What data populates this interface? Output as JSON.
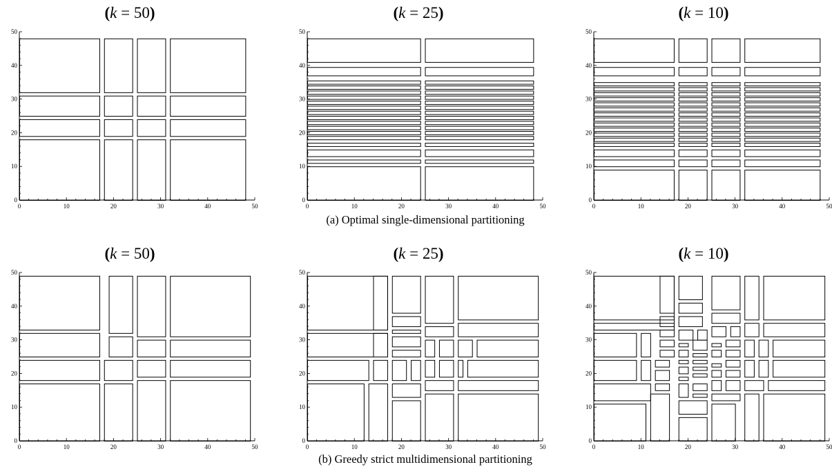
{
  "figure": {
    "rows": [
      {
        "caption": "(a) Optimal single-dimensional partitioning",
        "panels": [
          {
            "title_paren_left": "(",
            "title_var": "k",
            "title_eq": " = 50",
            "title_paren_right": ")",
            "k": 50
          },
          {
            "title_paren_left": "(",
            "title_var": "k",
            "title_eq": " = 25",
            "title_paren_right": ")",
            "k": 25
          },
          {
            "title_paren_left": "(",
            "title_var": "k",
            "title_eq": " = 10",
            "title_paren_right": ")",
            "k": 10
          }
        ]
      },
      {
        "caption": "(b) Greedy strict multidimensional partitioning",
        "panels": [
          {
            "title_paren_left": "(",
            "title_var": "k",
            "title_eq": " = 50",
            "title_paren_right": ")",
            "k": 50
          },
          {
            "title_paren_left": "(",
            "title_var": "k",
            "title_eq": " = 25",
            "title_paren_right": ")",
            "k": 25
          },
          {
            "title_paren_left": "(",
            "title_var": "k",
            "title_eq": " = 10",
            "title_paren_right": ")",
            "k": 10
          }
        ]
      }
    ]
  },
  "chart_data": [
    {
      "type": "partition",
      "title": "(k = 50)",
      "xlim": [
        0,
        50
      ],
      "ylim": [
        0,
        50
      ],
      "xticks": [
        "0",
        "10",
        "20",
        "30",
        "40",
        "50"
      ],
      "yticks": [
        "0",
        "10",
        "20",
        "30",
        "40",
        "50"
      ],
      "rects": [
        [
          0,
          0,
          17,
          18
        ],
        [
          18,
          0,
          24,
          18
        ],
        [
          25,
          0,
          31,
          18
        ],
        [
          32,
          0,
          48,
          18
        ],
        [
          0,
          19,
          17,
          24
        ],
        [
          18,
          19,
          24,
          24
        ],
        [
          25,
          19,
          31,
          24
        ],
        [
          32,
          19,
          48,
          24
        ],
        [
          0,
          25,
          17,
          31
        ],
        [
          18,
          25,
          24,
          31
        ],
        [
          25,
          25,
          31,
          31
        ],
        [
          32,
          25,
          48,
          31
        ],
        [
          0,
          32,
          17,
          48
        ],
        [
          18,
          32,
          24,
          48
        ],
        [
          25,
          32,
          31,
          48
        ],
        [
          32,
          32,
          48,
          48
        ]
      ]
    },
    {
      "type": "partition",
      "title": "(k = 25)",
      "xlim": [
        0,
        50
      ],
      "ylim": [
        0,
        50
      ],
      "xticks": [
        "0",
        "10",
        "20",
        "30",
        "40",
        "50"
      ],
      "yticks": [
        "0",
        "10",
        "20",
        "30",
        "40",
        "50"
      ],
      "xcuts": [
        [
          0,
          24
        ],
        [
          25,
          48
        ]
      ],
      "ycuts": [
        [
          0,
          10
        ],
        [
          11,
          12
        ],
        [
          13,
          15
        ],
        [
          16,
          17
        ],
        [
          18,
          19
        ],
        [
          19.5,
          20.5
        ],
        [
          21,
          22
        ],
        [
          22.5,
          23.5
        ],
        [
          24,
          25
        ],
        [
          25.5,
          26.5
        ],
        [
          27,
          28
        ],
        [
          28.5,
          29.5
        ],
        [
          30,
          31
        ],
        [
          31.5,
          32.5
        ],
        [
          33,
          34
        ],
        [
          34.5,
          35.5
        ],
        [
          37,
          39.5
        ],
        [
          41,
          48
        ]
      ]
    },
    {
      "type": "partition",
      "title": "(k = 10)",
      "xlim": [
        0,
        50
      ],
      "ylim": [
        0,
        50
      ],
      "xticks": [
        "0",
        "10",
        "20",
        "30",
        "40",
        "50"
      ],
      "yticks": [
        "0",
        "10",
        "20",
        "30",
        "40",
        "50"
      ],
      "xcuts": [
        [
          0,
          17
        ],
        [
          18,
          24
        ],
        [
          25,
          31
        ],
        [
          32,
          48
        ]
      ],
      "ycuts": [
        [
          0,
          9
        ],
        [
          10,
          12
        ],
        [
          13,
          15
        ],
        [
          16,
          17
        ],
        [
          17.5,
          18.5
        ],
        [
          19,
          20
        ],
        [
          20.5,
          21.5
        ],
        [
          22,
          23
        ],
        [
          23.5,
          24.5
        ],
        [
          25,
          26
        ],
        [
          26.5,
          27.5
        ],
        [
          28,
          29
        ],
        [
          29.5,
          30.5
        ],
        [
          31,
          32
        ],
        [
          32.5,
          33.5
        ],
        [
          34,
          35
        ],
        [
          37,
          39.5
        ],
        [
          41,
          48
        ]
      ]
    },
    {
      "type": "partition",
      "title": "(k = 50)",
      "xlim": [
        0,
        50
      ],
      "ylim": [
        0,
        50
      ],
      "xticks": [
        "0",
        "10",
        "20",
        "30",
        "40",
        "50"
      ],
      "yticks": [
        "0",
        "10",
        "20",
        "30",
        "40",
        "50"
      ],
      "rects": [
        [
          0,
          0,
          17,
          17
        ],
        [
          18,
          0,
          24,
          17
        ],
        [
          25,
          0,
          31,
          18
        ],
        [
          32,
          0,
          49,
          18
        ],
        [
          0,
          18,
          17,
          24
        ],
        [
          18,
          18,
          24,
          24
        ],
        [
          25,
          19,
          31,
          24
        ],
        [
          32,
          19,
          49,
          24
        ],
        [
          0,
          25,
          17,
          32
        ],
        [
          19,
          25,
          24,
          31
        ],
        [
          25,
          25,
          31,
          30
        ],
        [
          32,
          25,
          49,
          30
        ],
        [
          0,
          33,
          17,
          49
        ],
        [
          19,
          32,
          24,
          49
        ],
        [
          25,
          31,
          31,
          49
        ],
        [
          32,
          31,
          49,
          49
        ]
      ]
    },
    {
      "type": "partition",
      "title": "(k = 25)",
      "xlim": [
        0,
        50
      ],
      "ylim": [
        0,
        50
      ],
      "xticks": [
        "0",
        "10",
        "20",
        "30",
        "40",
        "50"
      ],
      "yticks": [
        "0",
        "10",
        "20",
        "30",
        "40",
        "50"
      ],
      "rects": [
        [
          0,
          0,
          12,
          17
        ],
        [
          13,
          0,
          17,
          17
        ],
        [
          18,
          0,
          24,
          12
        ],
        [
          18,
          13,
          24,
          17
        ],
        [
          0,
          18,
          13,
          24
        ],
        [
          14,
          18,
          17,
          24
        ],
        [
          18,
          18,
          21,
          24
        ],
        [
          22,
          18,
          24,
          24
        ],
        [
          0,
          25,
          17,
          32
        ],
        [
          0,
          33,
          17,
          49
        ],
        [
          18,
          25,
          24,
          27
        ],
        [
          18,
          28,
          24,
          31
        ],
        [
          18,
          32,
          24,
          33
        ],
        [
          18,
          34,
          24,
          37
        ],
        [
          18,
          38,
          24,
          49
        ],
        [
          14,
          25,
          17,
          32
        ],
        [
          14,
          33,
          17,
          49
        ],
        [
          25,
          0,
          31,
          14
        ],
        [
          32,
          0,
          49,
          14
        ],
        [
          25,
          15,
          31,
          18
        ],
        [
          32,
          15,
          49,
          18
        ],
        [
          25,
          19,
          27,
          24
        ],
        [
          28,
          19,
          31,
          24
        ],
        [
          32,
          19,
          33,
          24
        ],
        [
          34,
          19,
          49,
          24
        ],
        [
          25,
          25,
          27,
          30
        ],
        [
          28,
          25,
          31,
          30
        ],
        [
          32,
          25,
          35,
          30
        ],
        [
          36,
          25,
          49,
          30
        ],
        [
          25,
          31,
          31,
          34
        ],
        [
          32,
          31,
          49,
          35
        ],
        [
          25,
          35,
          31,
          49
        ],
        [
          32,
          36,
          49,
          49
        ]
      ]
    },
    {
      "type": "partition",
      "title": "(k = 10)",
      "xlim": [
        0,
        50
      ],
      "ylim": [
        0,
        50
      ],
      "xticks": [
        "0",
        "10",
        "20",
        "30",
        "40",
        "50"
      ],
      "yticks": [
        "0",
        "10",
        "20",
        "30",
        "40",
        "50"
      ],
      "rects": [
        [
          0,
          0,
          11,
          11
        ],
        [
          0,
          12,
          12,
          17
        ],
        [
          0,
          18,
          9,
          24
        ],
        [
          0,
          25,
          9,
          32
        ],
        [
          0,
          33,
          17,
          35
        ],
        [
          0,
          36,
          17,
          49
        ],
        [
          10,
          18,
          12,
          24
        ],
        [
          10,
          25,
          12,
          32
        ],
        [
          12,
          0,
          16,
          14
        ],
        [
          13,
          15,
          16,
          17
        ],
        [
          13,
          18,
          16,
          21
        ],
        [
          13,
          22,
          16,
          24
        ],
        [
          14,
          25,
          17,
          27
        ],
        [
          14,
          28,
          17,
          30
        ],
        [
          14,
          31,
          17,
          33
        ],
        [
          14,
          34,
          17,
          37
        ],
        [
          14,
          38,
          17,
          49
        ],
        [
          18,
          0,
          24,
          7
        ],
        [
          18,
          8,
          24,
          12
        ],
        [
          18,
          13,
          20,
          17
        ],
        [
          21,
          13,
          24,
          14
        ],
        [
          21,
          15,
          24,
          17
        ],
        [
          18,
          18,
          20,
          19
        ],
        [
          21,
          19,
          24,
          20
        ],
        [
          18,
          20,
          20,
          22
        ],
        [
          21,
          21,
          24,
          22
        ],
        [
          18,
          23,
          20,
          24
        ],
        [
          21,
          23,
          24,
          24
        ],
        [
          18,
          25,
          20,
          27
        ],
        [
          21,
          25,
          24,
          26
        ],
        [
          18,
          28,
          20,
          29
        ],
        [
          21,
          27,
          24,
          30
        ],
        [
          18,
          30,
          21,
          33
        ],
        [
          22,
          30,
          24,
          33
        ],
        [
          18,
          34,
          23,
          37
        ],
        [
          18,
          38,
          23,
          41
        ],
        [
          18,
          42,
          23,
          49
        ],
        [
          25,
          0,
          30,
          11
        ],
        [
          25,
          12,
          31,
          14
        ],
        [
          25,
          15,
          27,
          18
        ],
        [
          28,
          15,
          31,
          18
        ],
        [
          25,
          19,
          27,
          21
        ],
        [
          28,
          19,
          31,
          21
        ],
        [
          25,
          22,
          27,
          23
        ],
        [
          28,
          22,
          31,
          24
        ],
        [
          25,
          25,
          27,
          27
        ],
        [
          28,
          25,
          31,
          27
        ],
        [
          25,
          28,
          27,
          29
        ],
        [
          28,
          28,
          31,
          30
        ],
        [
          25,
          31,
          28,
          34
        ],
        [
          29,
          31,
          31,
          34
        ],
        [
          25,
          35,
          31,
          38
        ],
        [
          25,
          39,
          31,
          49
        ],
        [
          32,
          0,
          35,
          14
        ],
        [
          36,
          0,
          49,
          14
        ],
        [
          32,
          15,
          36,
          18
        ],
        [
          37,
          15,
          49,
          18
        ],
        [
          32,
          19,
          34,
          24
        ],
        [
          35,
          19,
          37,
          24
        ],
        [
          38,
          19,
          49,
          24
        ],
        [
          32,
          25,
          34,
          30
        ],
        [
          35,
          25,
          37,
          30
        ],
        [
          38,
          25,
          49,
          30
        ],
        [
          32,
          31,
          35,
          35
        ],
        [
          36,
          31,
          49,
          35
        ],
        [
          32,
          36,
          35,
          49
        ],
        [
          36,
          36,
          49,
          49
        ]
      ]
    }
  ]
}
